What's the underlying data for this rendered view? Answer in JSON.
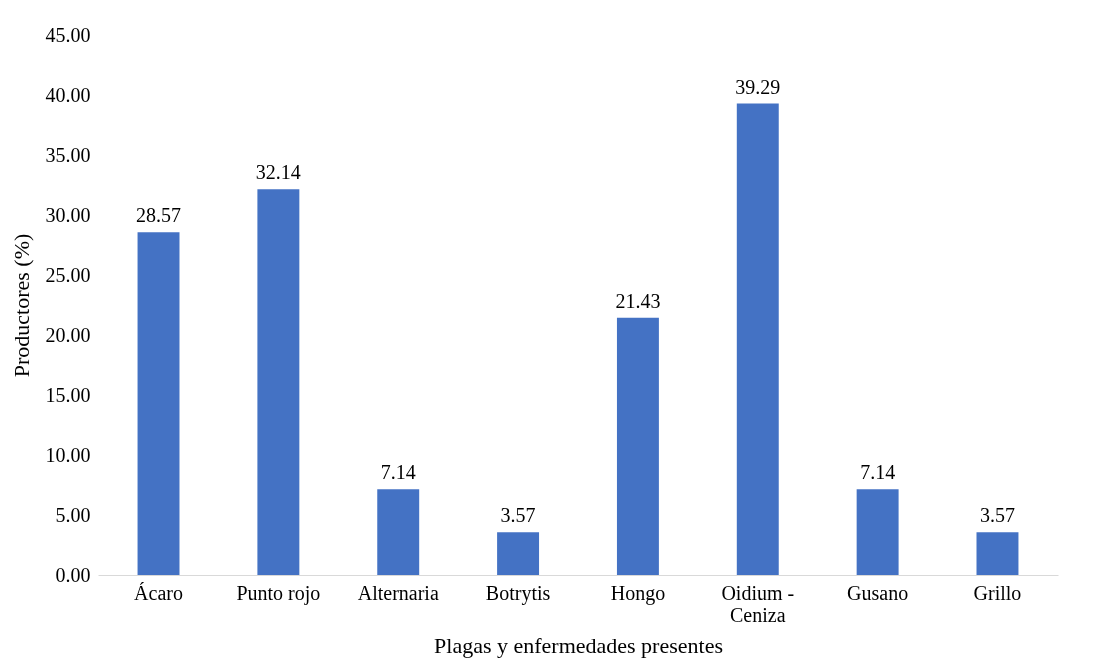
{
  "chart_data": {
    "type": "bar",
    "xlabel": "Plagas y enfermedades presentes",
    "ylabel": "Productores (%)",
    "categories": [
      "Ácaro",
      "Punto rojo",
      "Alternaria",
      "Botrytis",
      "Hongo",
      "Oidium - Ceniza",
      "Gusano",
      "Grillo"
    ],
    "values": [
      28.57,
      32.14,
      7.14,
      3.57,
      21.43,
      39.29,
      7.14,
      3.57
    ],
    "color": "#4472c4",
    "ylim": [
      0,
      45
    ],
    "yticks": [
      {
        "value": 0,
        "label": "0.00"
      },
      {
        "value": 5,
        "label": "5.00"
      },
      {
        "value": 10,
        "label": "10.00"
      },
      {
        "value": 15,
        "label": "15.00"
      },
      {
        "value": 20,
        "label": "20.00"
      },
      {
        "value": 25,
        "label": "25.00"
      },
      {
        "value": 30,
        "label": "30.00"
      },
      {
        "value": 35,
        "label": "35.00"
      },
      {
        "value": 40,
        "label": "40.00"
      },
      {
        "value": 45,
        "label": "45.00"
      }
    ],
    "data_labels": true,
    "grid": false
  }
}
